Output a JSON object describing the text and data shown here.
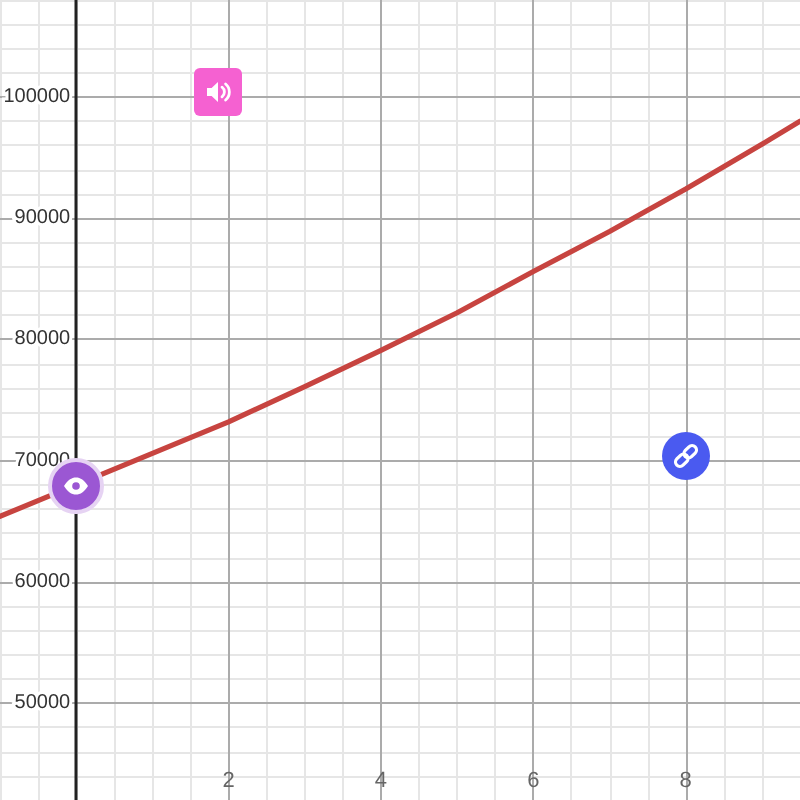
{
  "chart_data": {
    "type": "line",
    "x": [
      -1,
      -0.5,
      0,
      1,
      2,
      3,
      4,
      5,
      6,
      7,
      8,
      9,
      9.5
    ],
    "values": [
      65400,
      66700,
      68000,
      70600,
      73200,
      76100,
      79100,
      82200,
      85600,
      88900,
      92400,
      96100,
      98000
    ],
    "color": "#c74440",
    "xlim": [
      -1,
      9.5
    ],
    "ylim": [
      42000,
      108000
    ],
    "xticks": [
      2,
      4,
      6,
      8
    ],
    "yticks": [
      50000,
      60000,
      70000,
      80000,
      90000,
      100000
    ],
    "grid": true,
    "marker": "none",
    "line_style": "solid"
  }
}
